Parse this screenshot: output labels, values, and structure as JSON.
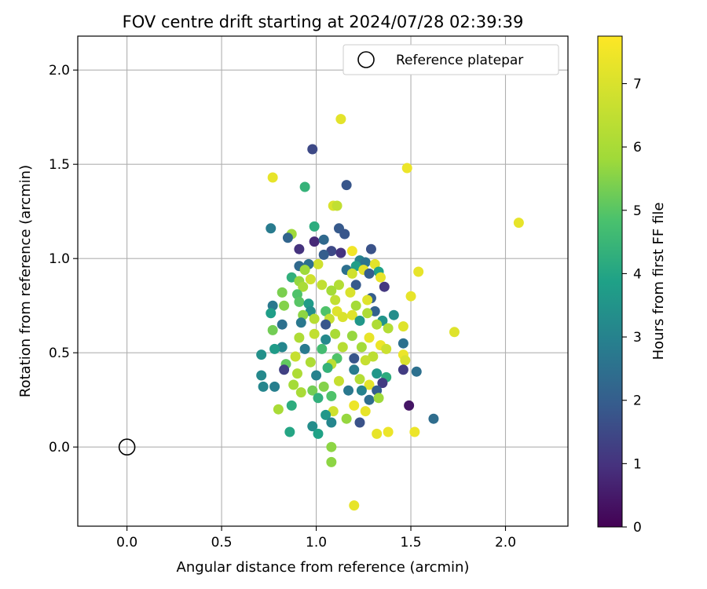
{
  "chart_data": {
    "type": "scatter",
    "title": "FOV centre drift starting at 2024/07/28 02:39:39",
    "xlabel": "Angular distance from reference (arcmin)",
    "ylabel": "Rotation from reference (arcmin)",
    "xlim": [
      -0.26,
      2.33
    ],
    "ylim": [
      -0.42,
      2.18
    ],
    "xticks": [
      "0.0",
      "0.5",
      "1.0",
      "1.5",
      "2.0"
    ],
    "yticks": [
      "0.0",
      "0.5",
      "1.0",
      "1.5",
      "2.0"
    ],
    "grid": true,
    "legend": {
      "placement": "top-right",
      "entries": [
        "Reference platepar"
      ]
    },
    "reference_point": {
      "x": 0.0,
      "y": 0.0,
      "name": "Reference platepar"
    },
    "colorbar": {
      "label": "Hours from first FF file",
      "colormap": "viridis",
      "range": [
        0,
        7.75
      ],
      "ticks": [
        "0",
        "1",
        "2",
        "3",
        "4",
        "5",
        "6",
        "7"
      ]
    },
    "points": [
      [
        1.13,
        1.74,
        7.2
      ],
      [
        0.98,
        1.58,
        1.5
      ],
      [
        1.48,
        1.48,
        7.4
      ],
      [
        0.77,
        1.43,
        7.3
      ],
      [
        1.16,
        1.39,
        1.8
      ],
      [
        0.94,
        1.38,
        4.4
      ],
      [
        1.09,
        1.28,
        7.0
      ],
      [
        1.11,
        1.28,
        6.5
      ],
      [
        2.07,
        1.19,
        7.3
      ],
      [
        0.76,
        1.16,
        2.8
      ],
      [
        0.87,
        1.13,
        5.8
      ],
      [
        1.12,
        1.16,
        1.9
      ],
      [
        0.85,
        1.11,
        2.2
      ],
      [
        0.99,
        1.17,
        4.2
      ],
      [
        1.15,
        1.13,
        1.8
      ],
      [
        0.99,
        1.09,
        0.8
      ],
      [
        1.04,
        1.1,
        2.3
      ],
      [
        0.91,
        1.05,
        1.0
      ],
      [
        1.29,
        1.05,
        1.7
      ],
      [
        1.08,
        1.04,
        1.5
      ],
      [
        1.19,
        1.04,
        7.5
      ],
      [
        1.13,
        1.03,
        1.0
      ],
      [
        1.04,
        1.02,
        2.0
      ],
      [
        1.23,
        0.99,
        3.0
      ],
      [
        1.26,
        0.98,
        2.6
      ],
      [
        1.31,
        0.97,
        7.2
      ],
      [
        1.01,
        0.97,
        6.8
      ],
      [
        0.96,
        0.97,
        2.5
      ],
      [
        1.21,
        0.96,
        3.8
      ],
      [
        0.91,
        0.96,
        2.3
      ],
      [
        1.54,
        0.93,
        7.3
      ],
      [
        1.25,
        0.94,
        7.2
      ],
      [
        1.33,
        0.93,
        3.9
      ],
      [
        0.94,
        0.94,
        5.8
      ],
      [
        1.16,
        0.94,
        2.5
      ],
      [
        1.19,
        0.92,
        6.8
      ],
      [
        1.28,
        0.92,
        2.0
      ],
      [
        1.34,
        0.9,
        7.3
      ],
      [
        0.97,
        0.89,
        6.8
      ],
      [
        0.87,
        0.9,
        4.3
      ],
      [
        0.91,
        0.88,
        5.7
      ],
      [
        1.12,
        0.86,
        6.2
      ],
      [
        1.03,
        0.86,
        6.5
      ],
      [
        1.21,
        0.86,
        1.9
      ],
      [
        1.36,
        0.85,
        1.1
      ],
      [
        0.93,
        0.85,
        6.0
      ],
      [
        1.08,
        0.83,
        5.9
      ],
      [
        1.18,
        0.82,
        7.0
      ],
      [
        0.82,
        0.82,
        5.4
      ],
      [
        0.9,
        0.81,
        4.9
      ],
      [
        1.5,
        0.8,
        7.3
      ],
      [
        1.29,
        0.79,
        2.0
      ],
      [
        1.1,
        0.78,
        6.5
      ],
      [
        0.91,
        0.77,
        5.0
      ],
      [
        1.27,
        0.78,
        7.1
      ],
      [
        0.77,
        0.75,
        2.7
      ],
      [
        0.96,
        0.76,
        3.7
      ],
      [
        1.21,
        0.75,
        5.9
      ],
      [
        1.11,
        0.72,
        7.1
      ],
      [
        0.83,
        0.75,
        5.5
      ],
      [
        1.05,
        0.72,
        4.9
      ],
      [
        0.97,
        0.72,
        3.3
      ],
      [
        1.31,
        0.72,
        2.1
      ],
      [
        1.19,
        0.7,
        7.1
      ],
      [
        1.41,
        0.7,
        3.3
      ],
      [
        0.76,
        0.71,
        3.8
      ],
      [
        1.27,
        0.71,
        6.1
      ],
      [
        0.93,
        0.7,
        5.6
      ],
      [
        1.14,
        0.69,
        7.0
      ],
      [
        1.07,
        0.68,
        6.6
      ],
      [
        0.99,
        0.68,
        6.3
      ],
      [
        1.23,
        0.67,
        3.6
      ],
      [
        1.35,
        0.67,
        3.5
      ],
      [
        0.92,
        0.66,
        2.7
      ],
      [
        1.05,
        0.65,
        1.8
      ],
      [
        1.46,
        0.64,
        7.1
      ],
      [
        0.82,
        0.65,
        2.5
      ],
      [
        1.32,
        0.65,
        6.1
      ],
      [
        1.38,
        0.63,
        6.2
      ],
      [
        0.77,
        0.62,
        5.3
      ],
      [
        1.73,
        0.61,
        7.1
      ],
      [
        1.1,
        0.6,
        6.0
      ],
      [
        0.99,
        0.6,
        6.5
      ],
      [
        1.28,
        0.58,
        7.3
      ],
      [
        1.19,
        0.59,
        5.7
      ],
      [
        0.91,
        0.58,
        6.1
      ],
      [
        1.05,
        0.57,
        3.2
      ],
      [
        1.46,
        0.55,
        2.5
      ],
      [
        1.34,
        0.54,
        7.4
      ],
      [
        0.82,
        0.53,
        3.1
      ],
      [
        1.14,
        0.53,
        6.3
      ],
      [
        1.24,
        0.53,
        5.9
      ],
      [
        0.94,
        0.52,
        2.8
      ],
      [
        1.03,
        0.52,
        4.7
      ],
      [
        1.37,
        0.52,
        6.7
      ],
      [
        0.78,
        0.52,
        3.7
      ],
      [
        1.46,
        0.49,
        7.4
      ],
      [
        1.3,
        0.48,
        6.4
      ],
      [
        0.71,
        0.49,
        3.4
      ],
      [
        0.89,
        0.48,
        6.6
      ],
      [
        1.11,
        0.47,
        4.9
      ],
      [
        1.2,
        0.47,
        1.8
      ],
      [
        1.47,
        0.46,
        7.0
      ],
      [
        0.97,
        0.45,
        6.1
      ],
      [
        1.26,
        0.46,
        6.6
      ],
      [
        1.08,
        0.44,
        6.4
      ],
      [
        0.84,
        0.44,
        5.1
      ],
      [
        1.53,
        0.4,
        2.5
      ],
      [
        1.46,
        0.41,
        1.2
      ],
      [
        0.83,
        0.41,
        1.3
      ],
      [
        1.06,
        0.42,
        4.4
      ],
      [
        1.2,
        0.41,
        2.8
      ],
      [
        1.32,
        0.39,
        3.6
      ],
      [
        0.9,
        0.39,
        6.1
      ],
      [
        1.0,
        0.38,
        3.0
      ],
      [
        1.37,
        0.37,
        4.2
      ],
      [
        0.71,
        0.38,
        3.2
      ],
      [
        1.23,
        0.36,
        6.2
      ],
      [
        1.12,
        0.35,
        6.6
      ],
      [
        1.35,
        0.34,
        1.2
      ],
      [
        0.88,
        0.33,
        5.9
      ],
      [
        1.28,
        0.33,
        7.2
      ],
      [
        1.04,
        0.32,
        5.5
      ],
      [
        0.78,
        0.32,
        2.9
      ],
      [
        0.72,
        0.32,
        3.1
      ],
      [
        1.17,
        0.3,
        2.7
      ],
      [
        0.98,
        0.3,
        5.3
      ],
      [
        1.24,
        0.3,
        3.0
      ],
      [
        1.32,
        0.3,
        2.0
      ],
      [
        0.92,
        0.29,
        6.0
      ],
      [
        1.08,
        0.27,
        4.9
      ],
      [
        1.28,
        0.25,
        2.4
      ],
      [
        1.01,
        0.26,
        4.3
      ],
      [
        1.33,
        0.26,
        5.8
      ],
      [
        0.87,
        0.22,
        4.2
      ],
      [
        1.49,
        0.22,
        0.4
      ],
      [
        1.2,
        0.22,
        7.4
      ],
      [
        0.8,
        0.2,
        6.0
      ],
      [
        1.09,
        0.19,
        6.8
      ],
      [
        1.26,
        0.19,
        7.3
      ],
      [
        1.05,
        0.17,
        3.6
      ],
      [
        1.62,
        0.15,
        2.4
      ],
      [
        1.16,
        0.15,
        5.7
      ],
      [
        1.08,
        0.13,
        3.1
      ],
      [
        1.23,
        0.13,
        1.7
      ],
      [
        0.98,
        0.11,
        3.3
      ],
      [
        1.52,
        0.08,
        7.4
      ],
      [
        1.38,
        0.08,
        7.4
      ],
      [
        1.32,
        0.07,
        7.3
      ],
      [
        0.86,
        0.08,
        4.0
      ],
      [
        1.01,
        0.07,
        3.9
      ],
      [
        1.08,
        0.0,
        5.6
      ],
      [
        1.08,
        -0.08,
        5.6
      ],
      [
        1.2,
        -0.31,
        7.3
      ]
    ]
  }
}
